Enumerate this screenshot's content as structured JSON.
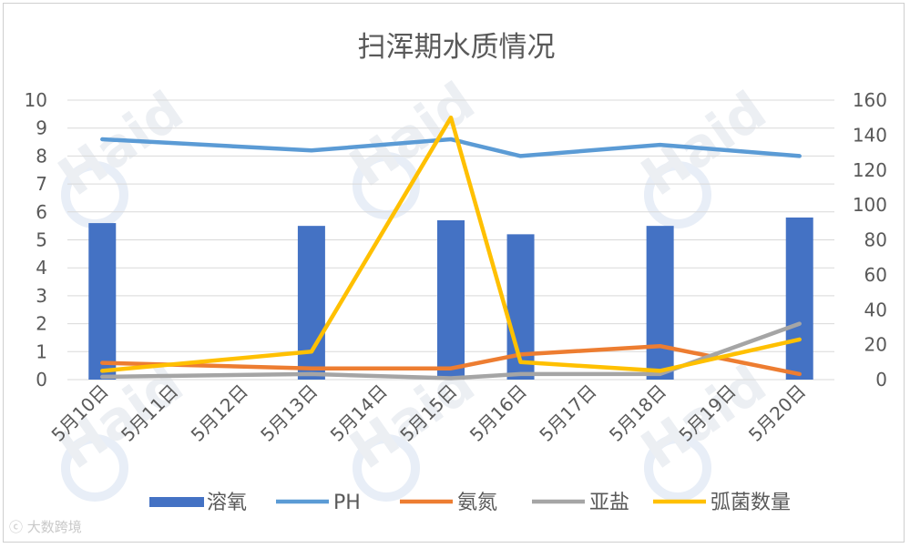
{
  "chart_data": {
    "type": "bar",
    "title": "扫浑期水质情况",
    "categories": [
      "5月10日",
      "5月11日",
      "5月12日",
      "5月13日",
      "5月14日",
      "5月15日",
      "5月16日",
      "5月17日",
      "5月18日",
      "5月19日",
      "5月20日"
    ],
    "left_axis": {
      "min": 0,
      "max": 10,
      "ticks": [
        0,
        1,
        2,
        3,
        4,
        5,
        6,
        7,
        8,
        9,
        10
      ]
    },
    "right_axis": {
      "min": 0,
      "max": 160,
      "ticks": [
        0,
        20,
        40,
        60,
        80,
        100,
        120,
        140,
        160
      ]
    },
    "grid": true,
    "legend_position": "bottom",
    "series": [
      {
        "name": "溶氧",
        "type": "bar",
        "axis": "left",
        "color": "#4472C4",
        "values": [
          5.6,
          null,
          null,
          5.5,
          null,
          5.7,
          5.2,
          null,
          5.5,
          null,
          5.8
        ]
      },
      {
        "name": "PH",
        "type": "line",
        "axis": "left",
        "color": "#5B9BD5",
        "values": [
          8.6,
          null,
          null,
          8.2,
          null,
          8.6,
          8.0,
          null,
          8.4,
          null,
          8.0
        ]
      },
      {
        "name": "氨氮",
        "type": "line",
        "axis": "left",
        "color": "#ED7D31",
        "values": [
          0.6,
          null,
          null,
          0.4,
          null,
          0.4,
          0.9,
          null,
          1.2,
          null,
          0.2
        ]
      },
      {
        "name": "亚盐",
        "type": "line",
        "axis": "left",
        "color": "#A5A5A5",
        "values": [
          0.1,
          null,
          null,
          0.2,
          null,
          0.05,
          0.2,
          null,
          0.2,
          null,
          2.0
        ]
      },
      {
        "name": "弧菌数量",
        "type": "line",
        "axis": "right",
        "color": "#FFC000",
        "values": [
          5,
          null,
          null,
          16,
          null,
          150,
          10,
          null,
          5,
          null,
          23
        ]
      }
    ]
  },
  "watermark": {
    "brand_text": "Haid",
    "corner_text": "大数跨境"
  }
}
